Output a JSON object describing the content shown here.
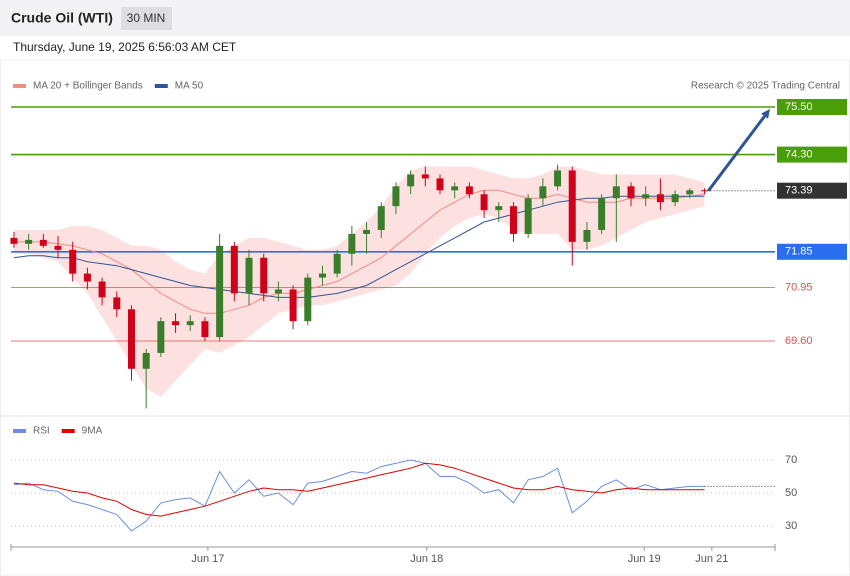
{
  "header": {
    "title": "Crude Oil (WTI)",
    "interval": "30 MIN",
    "timestamp": "Thursday, June 19, 2025 6:56:03 AM CET"
  },
  "chart_data": [
    {
      "type": "candlestick",
      "source": "Research © 2025 Trading Central",
      "ylim": [
        67.7,
        76.7
      ],
      "xlim": [
        -0.2,
        51.8
      ],
      "up_color": "#3a7d2a",
      "down_color": "#d0021b",
      "open": [
        72.2,
        72.05,
        72.15,
        72.0,
        71.9,
        71.3,
        71.1,
        70.7,
        70.4,
        68.9,
        69.3,
        70.1,
        70.0,
        70.1,
        69.7,
        72.0,
        70.8,
        71.7,
        70.8,
        70.9,
        70.1,
        71.2,
        71.3,
        71.8,
        72.3,
        72.4,
        73.0,
        73.5,
        73.8,
        73.7,
        73.4,
        73.5,
        73.3,
        72.9,
        73.0,
        72.3,
        73.2,
        73.5,
        73.9,
        72.1,
        72.4,
        73.2,
        73.5,
        73.2,
        73.3,
        73.1,
        73.3,
        73.4
      ],
      "high": [
        72.35,
        72.3,
        72.3,
        72.25,
        72.1,
        71.45,
        71.2,
        70.85,
        70.5,
        69.4,
        70.2,
        70.3,
        70.25,
        70.2,
        72.3,
        72.1,
        71.9,
        71.8,
        71.1,
        71.0,
        71.3,
        71.5,
        71.9,
        72.5,
        72.6,
        73.1,
        73.6,
        73.9,
        74.0,
        73.8,
        73.6,
        73.6,
        73.4,
        73.1,
        73.1,
        73.3,
        73.7,
        74.05,
        74.0,
        72.6,
        73.3,
        73.8,
        73.6,
        73.5,
        73.7,
        73.4,
        73.45,
        73.45
      ],
      "low": [
        71.95,
        71.9,
        71.95,
        71.7,
        71.1,
        70.9,
        70.5,
        70.2,
        68.6,
        67.9,
        69.2,
        69.8,
        69.85,
        69.6,
        69.6,
        70.6,
        70.5,
        70.6,
        70.6,
        69.9,
        70.0,
        71.0,
        71.2,
        71.5,
        71.8,
        72.2,
        72.8,
        73.3,
        73.5,
        73.3,
        73.2,
        73.2,
        72.7,
        72.6,
        72.1,
        72.2,
        73.0,
        73.4,
        71.5,
        71.9,
        72.3,
        72.1,
        73.0,
        73.0,
        72.9,
        73.0,
        73.2,
        73.3
      ],
      "close": [
        72.05,
        72.15,
        72.0,
        71.9,
        71.3,
        71.1,
        70.7,
        70.4,
        68.9,
        69.3,
        70.1,
        70.0,
        70.1,
        69.7,
        72.0,
        70.8,
        71.7,
        70.8,
        70.9,
        70.1,
        71.2,
        71.3,
        71.8,
        72.3,
        72.4,
        73.0,
        73.5,
        73.8,
        73.7,
        73.4,
        73.5,
        73.3,
        72.9,
        73.0,
        72.3,
        73.2,
        73.5,
        73.9,
        72.1,
        72.4,
        73.2,
        73.5,
        73.2,
        73.3,
        73.1,
        73.3,
        73.4,
        73.39
      ],
      "series": [
        {
          "name": "MA 20 + Bollinger Bands",
          "color": "#f28b82",
          "values": [
            72.1,
            72.1,
            72.1,
            72.05,
            72.0,
            71.9,
            71.8,
            71.6,
            71.4,
            71.1,
            70.8,
            70.6,
            70.4,
            70.3,
            70.3,
            70.4,
            70.5,
            70.7,
            70.8,
            70.8,
            70.9,
            71.0,
            71.1,
            71.3,
            71.5,
            71.7,
            72.0,
            72.3,
            72.6,
            72.9,
            73.1,
            73.3,
            73.4,
            73.4,
            73.3,
            73.2,
            73.2,
            73.3,
            73.2,
            73.1,
            73.1,
            73.1,
            73.2,
            73.2,
            73.2,
            73.2,
            73.25,
            73.3
          ]
        },
        {
          "name": "MA 50",
          "color": "#2f5597",
          "values": [
            71.7,
            71.75,
            71.75,
            71.7,
            71.7,
            71.6,
            71.55,
            71.5,
            71.4,
            71.3,
            71.2,
            71.1,
            71.0,
            70.95,
            70.9,
            70.85,
            70.8,
            70.75,
            70.7,
            70.7,
            70.7,
            70.75,
            70.8,
            70.9,
            71.0,
            71.2,
            71.4,
            71.6,
            71.8,
            72.0,
            72.2,
            72.4,
            72.6,
            72.7,
            72.8,
            72.9,
            73.0,
            73.1,
            73.15,
            73.2,
            73.2,
            73.25,
            73.25,
            73.25,
            73.25,
            73.25,
            73.25,
            73.25
          ]
        }
      ],
      "bands": {
        "color": "#fdd9d9",
        "upper": [
          72.4,
          72.4,
          72.4,
          72.4,
          72.5,
          72.5,
          72.4,
          72.2,
          72.0,
          72.0,
          71.9,
          71.6,
          71.4,
          71.3,
          71.8,
          72.0,
          72.2,
          72.2,
          72.1,
          72.0,
          71.9,
          71.9,
          72.0,
          72.3,
          72.6,
          73.0,
          73.5,
          73.9,
          74.0,
          74.0,
          74.0,
          74.0,
          73.9,
          73.8,
          73.7,
          73.7,
          73.8,
          74.0,
          74.0,
          73.9,
          73.8,
          73.8,
          73.8,
          73.8,
          73.8,
          73.8,
          73.7,
          73.6
        ],
        "lower": [
          71.8,
          71.8,
          71.7,
          71.6,
          71.2,
          70.8,
          70.2,
          69.6,
          69.0,
          68.4,
          68.2,
          68.6,
          69.0,
          69.4,
          69.3,
          69.5,
          69.7,
          70.0,
          70.3,
          70.4,
          70.5,
          70.5,
          70.6,
          70.7,
          70.8,
          70.9,
          71.0,
          71.3,
          71.8,
          72.2,
          72.5,
          72.7,
          72.8,
          72.7,
          72.4,
          72.3,
          72.3,
          72.3,
          71.9,
          71.9,
          72.0,
          72.2,
          72.4,
          72.6,
          72.7,
          72.8,
          72.9,
          73.0
        ]
      },
      "levels": [
        {
          "value": 75.5,
          "label": "75.50",
          "color": "#4a9e0a",
          "style": "box"
        },
        {
          "value": 74.3,
          "label": "74.30",
          "color": "#4a9e0a",
          "style": "box"
        },
        {
          "value": 73.39,
          "label": "73.39",
          "color": "#333333",
          "style": "last"
        },
        {
          "value": 71.85,
          "label": "71.85",
          "color": "#2a6ef0",
          "style": "box"
        },
        {
          "value": 70.95,
          "label": "70.95",
          "color": "#e05050",
          "style": "text"
        },
        {
          "value": 69.6,
          "label": "69.60",
          "color": "#e05050",
          "style": "text"
        }
      ],
      "arrow_color": "#2f5597"
    },
    {
      "type": "line",
      "ylim": [
        18.5,
        82.1
      ],
      "yticks": [
        70,
        50,
        30
      ],
      "xlim": [
        -0.2,
        51.8
      ],
      "xticks": [
        {
          "value": 13.2,
          "label": "Jun 17"
        },
        {
          "value": 28.1,
          "label": "Jun 18"
        },
        {
          "value": 42.9,
          "label": "Jun 19"
        },
        {
          "value": 47.5,
          "label": "Jun 21"
        }
      ],
      "series": [
        {
          "name": "RSI",
          "color": "#6a8fe0",
          "values": [
            55,
            56,
            52,
            51,
            45,
            43,
            40,
            37,
            27,
            33,
            44,
            46,
            47,
            42,
            63,
            50,
            58,
            48,
            50,
            43,
            56,
            57,
            60,
            63,
            62,
            66,
            68,
            70,
            68,
            60,
            60,
            56,
            50,
            52,
            44,
            58,
            60,
            65,
            38,
            45,
            54,
            58,
            52,
            55,
            52,
            53,
            54,
            54
          ]
        },
        {
          "name": "9MA",
          "color": "#e00000",
          "values": [
            56,
            55,
            55,
            53,
            51,
            50,
            47,
            45,
            40,
            37,
            36,
            38,
            40,
            42,
            45,
            48,
            51,
            53,
            52,
            52,
            51,
            53,
            55,
            57,
            59,
            61,
            63,
            65,
            68,
            67,
            65,
            62,
            59,
            56,
            53,
            52,
            52,
            54,
            52,
            51,
            50,
            52,
            53,
            52,
            52,
            52,
            52,
            52
          ]
        }
      ]
    }
  ]
}
